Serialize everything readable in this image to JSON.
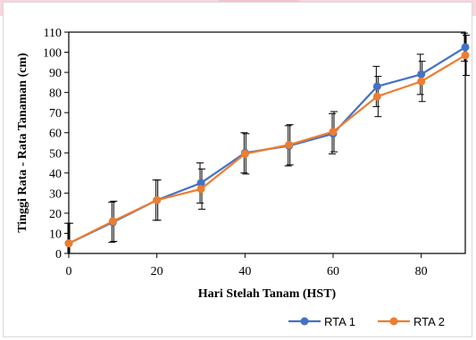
{
  "chart_data": {
    "type": "line",
    "title": "",
    "xlabel": "Hari Stelah Tanam (HST)",
    "ylabel": "Tinggi Rata - Rata Tanaman (cm)",
    "x": [
      0,
      10,
      20,
      30,
      40,
      50,
      60,
      70,
      80,
      90
    ],
    "xlim": [
      0,
      90
    ],
    "ylim": [
      0,
      110
    ],
    "xticks": [
      "0",
      "20",
      "40",
      "60",
      "80"
    ],
    "xtick_values": [
      0,
      20,
      40,
      60,
      80
    ],
    "yticks": [
      "0",
      "10",
      "20",
      "30",
      "40",
      "50",
      "60",
      "70",
      "80",
      "90",
      "100",
      "110"
    ],
    "ytick_values": [
      0,
      10,
      20,
      30,
      40,
      50,
      60,
      70,
      80,
      90,
      100,
      110
    ],
    "grid": false,
    "legend_position": "bottom-right",
    "series": [
      {
        "name": "RTA 1",
        "color": "#4472C4",
        "values": [
          5,
          15.5,
          26.5,
          35,
          50,
          53.5,
          59.5,
          83,
          89,
          102.5
        ],
        "error": [
          10,
          10,
          10,
          10,
          10,
          10,
          10,
          10,
          10,
          7
        ]
      },
      {
        "name": "RTA 2",
        "color": "#ED7D31",
        "values": [
          5,
          16,
          26.5,
          32,
          49.5,
          54,
          60.5,
          78,
          85.5,
          98.5
        ],
        "error": [
          10,
          10,
          10,
          10,
          10,
          10,
          10,
          10,
          10,
          10
        ]
      }
    ]
  }
}
